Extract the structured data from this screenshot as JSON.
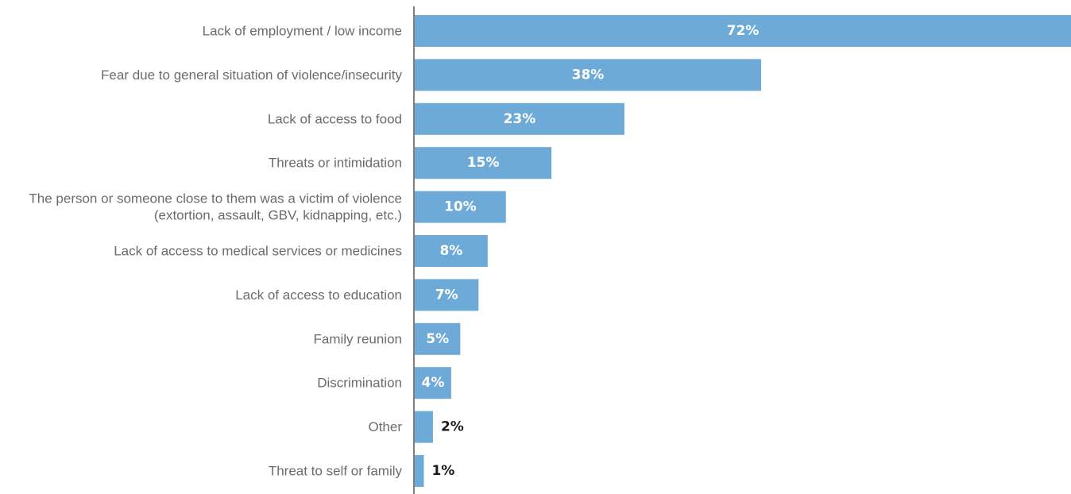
{
  "chart_data": {
    "type": "bar",
    "orientation": "horizontal",
    "categories": [
      [
        "Lack of employment / low income"
      ],
      [
        "Fear due to general situation of violence/insecurity"
      ],
      [
        "Lack of access to food"
      ],
      [
        "Threats or intimidation"
      ],
      [
        "The person or someone close to them was a victim of violence",
        "(extortion, assault, GBV, kidnapping, etc.)"
      ],
      [
        "Lack of access to medical services or medicines"
      ],
      [
        "Lack of access to education"
      ],
      [
        "Family reunion"
      ],
      [
        "Discrimination"
      ],
      [
        "Other"
      ],
      [
        "Threat to self or family"
      ]
    ],
    "values": [
      72,
      38,
      23,
      15,
      10,
      8,
      7,
      5,
      4,
      2,
      1
    ],
    "value_labels": [
      "72%",
      "38%",
      "23%",
      "15%",
      "10%",
      "8%",
      "7%",
      "5%",
      "4%",
      "2%",
      "1%"
    ],
    "value_max": 72,
    "unit": "%",
    "grid": false,
    "legend": "none",
    "bar_color": "#6eaad8",
    "axis_color": "#555555",
    "label_color": "#6b6b6b",
    "value_label_inside_color": "#ffffff",
    "value_label_outside_color": "#1a1a1a"
  }
}
